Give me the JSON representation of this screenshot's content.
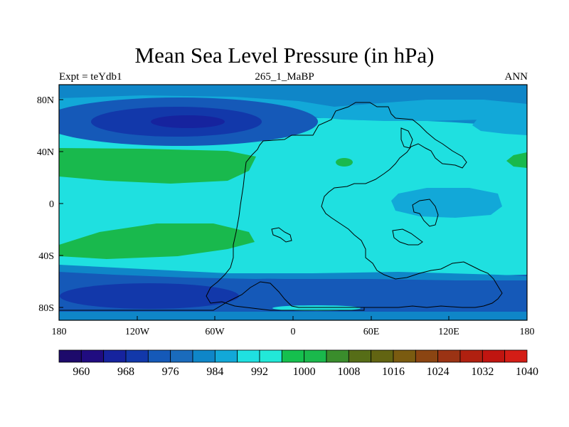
{
  "title": "Mean Sea Level Pressure (in hPa)",
  "subtitle_left": "Expt = teYdb1",
  "subtitle_center": "265_1_MaBP",
  "subtitle_right": "ANN",
  "chart_data": {
    "type": "contour_map",
    "variable": "Mean Sea Level Pressure",
    "units": "hPa",
    "x_ticks": [
      "180",
      "120W",
      "60W",
      "0",
      "60E",
      "120E",
      "180"
    ],
    "y_ticks": [
      "80N",
      "40N",
      "0",
      "40S",
      "80S"
    ],
    "colorbar": {
      "levels": [
        960,
        964,
        968,
        972,
        976,
        980,
        984,
        988,
        992,
        996,
        1000,
        1004,
        1008,
        1012,
        1016,
        1020,
        1024,
        1028,
        1032,
        1036,
        1040
      ],
      "labels": [
        "960",
        "968",
        "976",
        "984",
        "992",
        "1000",
        "1008",
        "1016",
        "1024",
        "1032",
        "1040"
      ],
      "colors": [
        "#1d0a6b",
        "#200c80",
        "#16239e",
        "#1238aa",
        "#1559b8",
        "#1a6bbc",
        "#0f86c8",
        "#12a8d8",
        "#1fe0e0",
        "#22e8d8",
        "#15c04e",
        "#1ab94c",
        "#3a8d2c",
        "#566d17",
        "#626412",
        "#7a5b10",
        "#8b4512",
        "#9b3314",
        "#b02010",
        "#c01510",
        "#d41d16"
      ]
    },
    "field_colors": {
      "background": "#0f86c8",
      "high": "#19b94d",
      "mid": "#1fe0e0",
      "low": "#12a8d8",
      "deep": "#1238aa",
      "deepest": "#16239e"
    }
  }
}
